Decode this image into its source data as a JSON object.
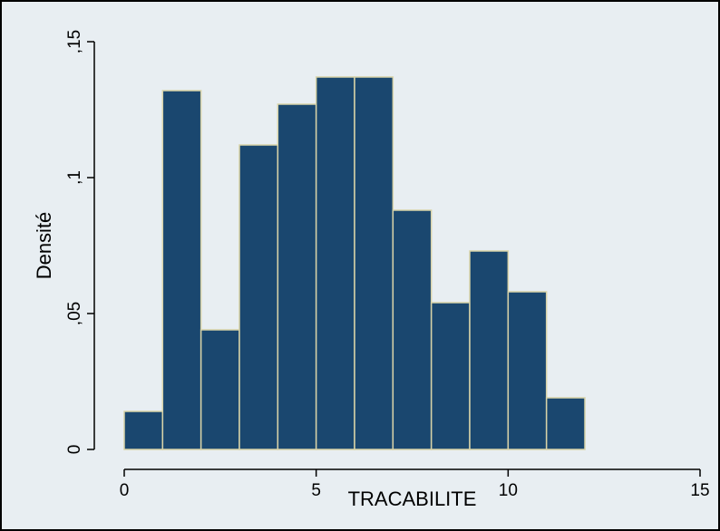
{
  "colors": {
    "background": "#e8eef2",
    "bar_fill": "#1a476f",
    "bar_edge": "#d8d3a8",
    "axis": "#000000",
    "frame": "#000000"
  },
  "chart_data": {
    "type": "bar",
    "subtype": "histogram",
    "xlabel": "TRACABILITE",
    "ylabel": "Densité",
    "xlim": [
      0,
      15
    ],
    "ylim": [
      0,
      0.15
    ],
    "xticks": [
      {
        "value": 0,
        "label": "0"
      },
      {
        "value": 5,
        "label": "5"
      },
      {
        "value": 10,
        "label": "10"
      },
      {
        "value": 15,
        "label": "15"
      }
    ],
    "yticks": [
      {
        "value": 0,
        "label": "0"
      },
      {
        "value": 0.05,
        "label": ",05"
      },
      {
        "value": 0.1,
        "label": ",1"
      },
      {
        "value": 0.15,
        "label": ",15"
      }
    ],
    "grid": false,
    "bins": [
      {
        "start": 0,
        "end": 1,
        "value": 0.014
      },
      {
        "start": 1,
        "end": 2,
        "value": 0.132
      },
      {
        "start": 2,
        "end": 3,
        "value": 0.044
      },
      {
        "start": 3,
        "end": 4,
        "value": 0.112
      },
      {
        "start": 4,
        "end": 5,
        "value": 0.127
      },
      {
        "start": 5,
        "end": 6,
        "value": 0.137
      },
      {
        "start": 6,
        "end": 7,
        "value": 0.137
      },
      {
        "start": 7,
        "end": 8,
        "value": 0.088
      },
      {
        "start": 8,
        "end": 9,
        "value": 0.054
      },
      {
        "start": 9,
        "end": 10,
        "value": 0.073
      },
      {
        "start": 10,
        "end": 11,
        "value": 0.058
      },
      {
        "start": 11,
        "end": 12,
        "value": 0.019
      }
    ]
  }
}
